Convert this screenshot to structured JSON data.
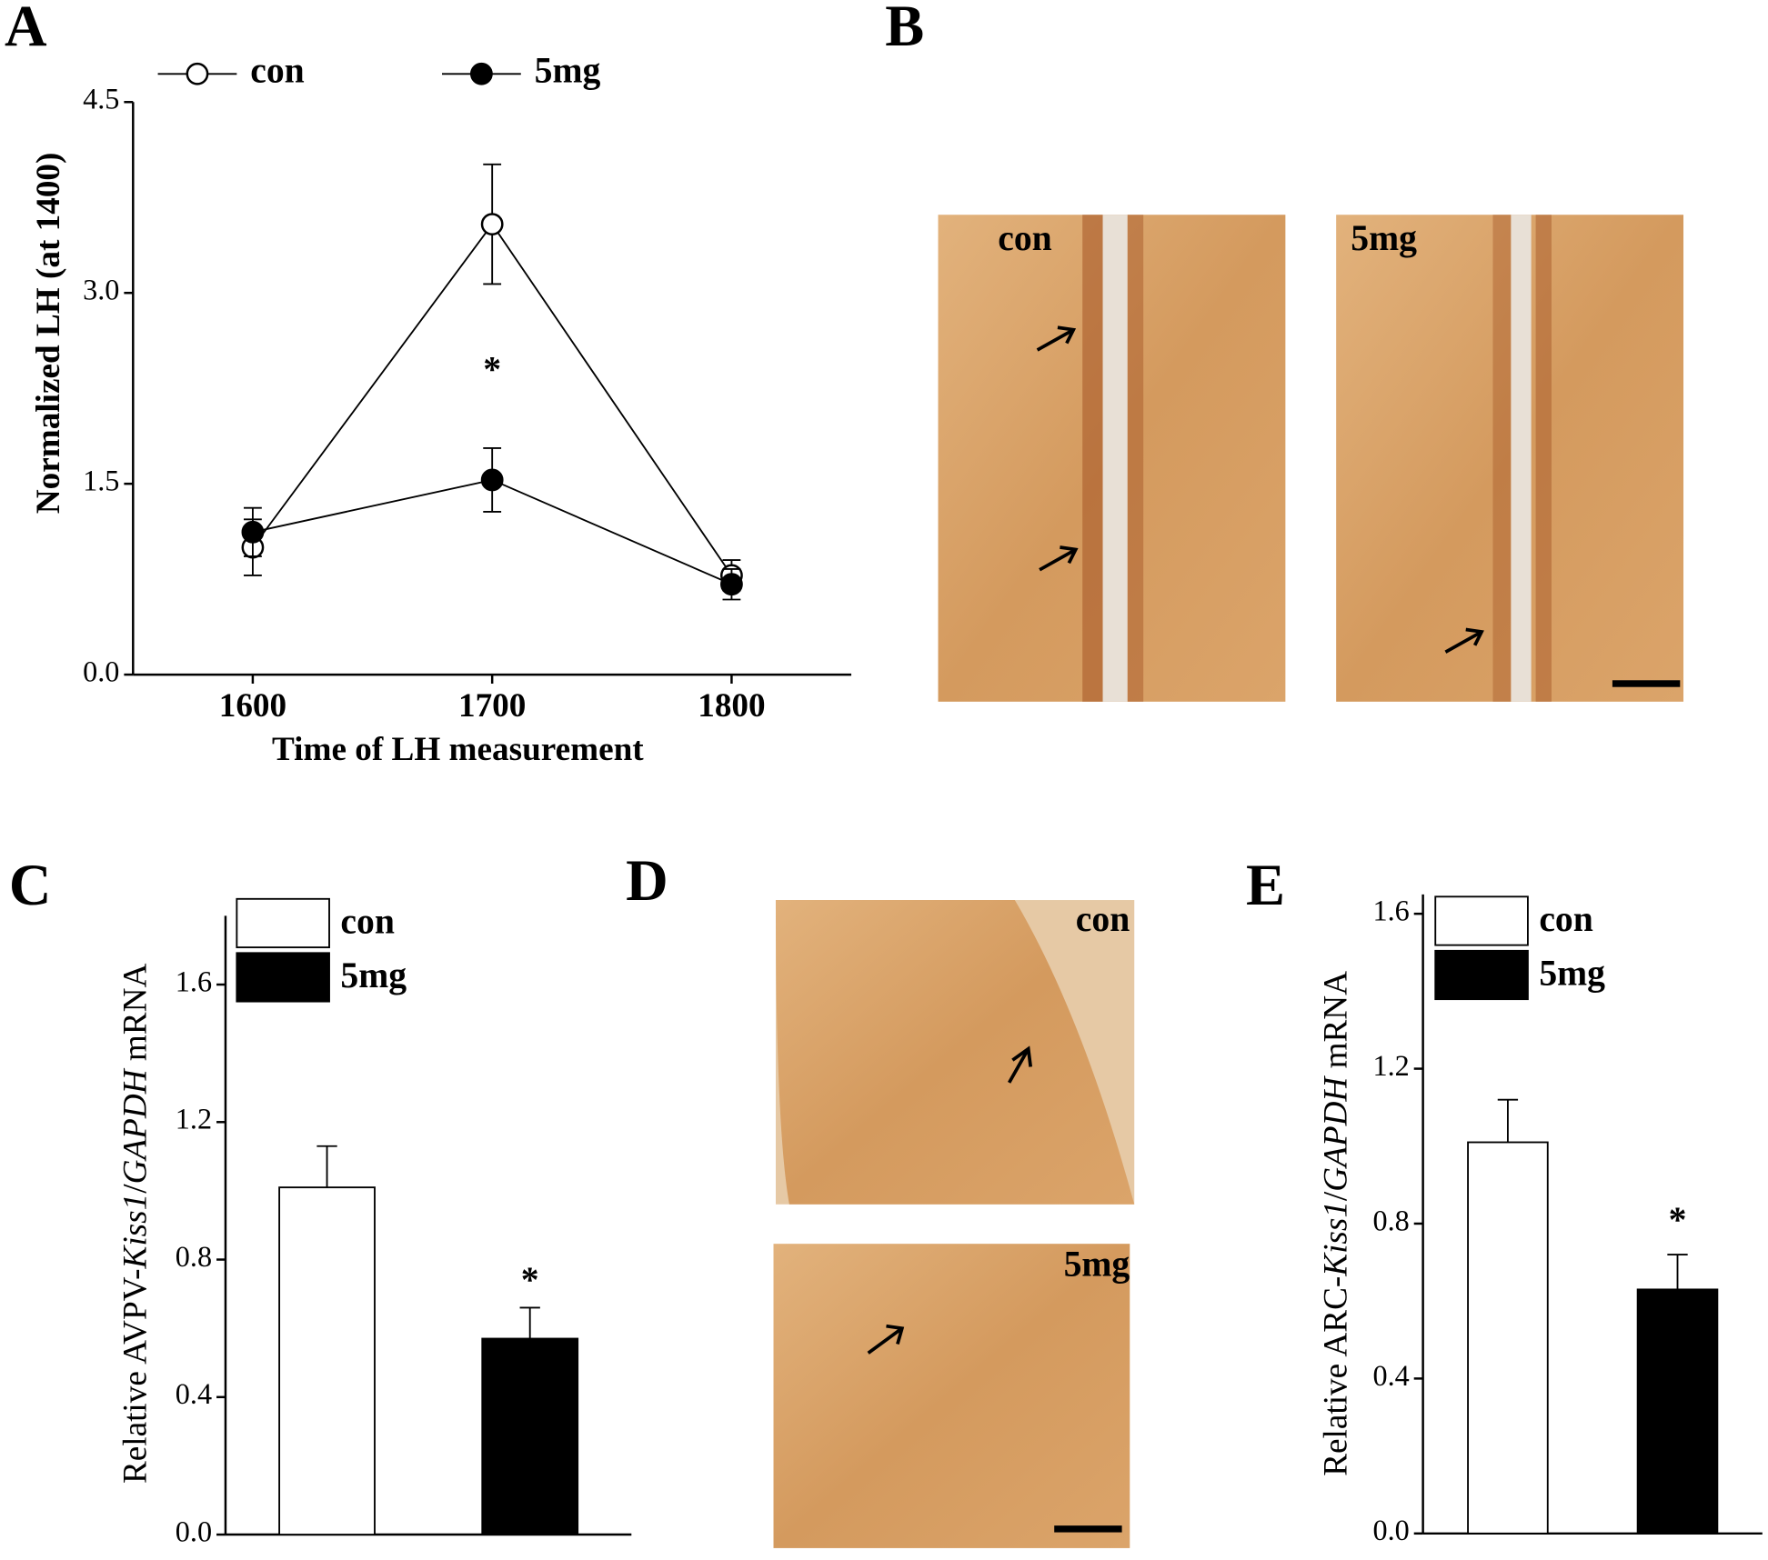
{
  "chart_data": [
    {
      "type": "line",
      "panel": "A",
      "ylabel": [
        {
          "text": "Normalized LH (at 1400)"
        }
      ],
      "xlabel": "Time of LH measurement",
      "x": [
        1600,
        1700,
        1800
      ],
      "xlim": [
        1550,
        1850
      ],
      "xticks": [
        1600,
        1700,
        1800
      ],
      "ylim": [
        0,
        4.5
      ],
      "yticks": [
        {
          "value": 0,
          "label": "0.0"
        },
        {
          "value": 1.5,
          "label": "1.5"
        },
        {
          "value": 3,
          "label": "3.0"
        },
        {
          "value": 4.5,
          "label": "4.5"
        }
      ],
      "series": [
        {
          "name": "con",
          "color": "#ffffff",
          "values": [
            1.0,
            3.54,
            0.78
          ],
          "errors": [
            0.22,
            0.47,
            0.12
          ]
        },
        {
          "name": "5mg",
          "color": "#000000",
          "values": [
            1.12,
            1.53,
            0.71
          ],
          "errors": [
            0.19,
            0.25,
            0.12
          ]
        }
      ],
      "annotations": [
        {
          "text": "*",
          "x": 1700,
          "y": 2.37
        }
      ]
    },
    {
      "type": "bar",
      "panel": "C",
      "ylabel": [
        {
          "text": "Relative AVPV-"
        },
        {
          "text": "Kiss1",
          "italic": true
        },
        {
          "text": "/"
        },
        {
          "text": "GAPDH",
          "italic": true
        },
        {
          "text": " mRNA"
        }
      ],
      "categories": [
        null,
        null
      ],
      "ylim": [
        0,
        1.8
      ],
      "yticks": [
        {
          "value": 0,
          "label": "0.0"
        },
        {
          "value": 0.4,
          "label": "0.4"
        },
        {
          "value": 0.8,
          "label": "0.8"
        },
        {
          "value": 1.2,
          "label": "1.2"
        },
        {
          "value": 1.6,
          "label": "1.6"
        }
      ],
      "series": [
        {
          "name": "con",
          "color": "#ffffff",
          "values": [
            1.01,
            null
          ],
          "errors": [
            0.12,
            null
          ]
        },
        {
          "name": "5mg",
          "color": "#000000",
          "values": [
            null,
            0.57
          ],
          "errors": [
            null,
            0.09
          ]
        }
      ],
      "annotations": [
        {
          "text": "*",
          "category": 1,
          "y": 0.73
        }
      ]
    },
    {
      "type": "bar",
      "panel": "E",
      "ylabel": [
        {
          "text": "Relative ARC-"
        },
        {
          "text": "Kiss1",
          "italic": true
        },
        {
          "text": "/"
        },
        {
          "text": "GAPDH",
          "italic": true
        },
        {
          "text": " mRNA"
        }
      ],
      "categories": [
        null,
        null
      ],
      "ylim": [
        0,
        1.65
      ],
      "yticks": [
        {
          "value": 0,
          "label": "0.0"
        },
        {
          "value": 0.4,
          "label": "0.4"
        },
        {
          "value": 0.8,
          "label": "0.8"
        },
        {
          "value": 1.2,
          "label": "1.2"
        },
        {
          "value": 1.6,
          "label": "1.6"
        }
      ],
      "series": [
        {
          "name": "con",
          "color": "#ffffff",
          "values": [
            1.01,
            null
          ],
          "errors": [
            0.11,
            null
          ]
        },
        {
          "name": "5mg",
          "color": "#000000",
          "values": [
            null,
            0.63
          ],
          "errors": [
            null,
            0.09
          ]
        }
      ],
      "annotations": [
        {
          "text": "*",
          "category": 1,
          "y": 0.8
        }
      ]
    }
  ],
  "images": [
    {
      "panel": "B",
      "labels": [
        "con",
        "5mg"
      ]
    },
    {
      "panel": "D",
      "labels": [
        "con",
        "5mg"
      ]
    }
  ]
}
